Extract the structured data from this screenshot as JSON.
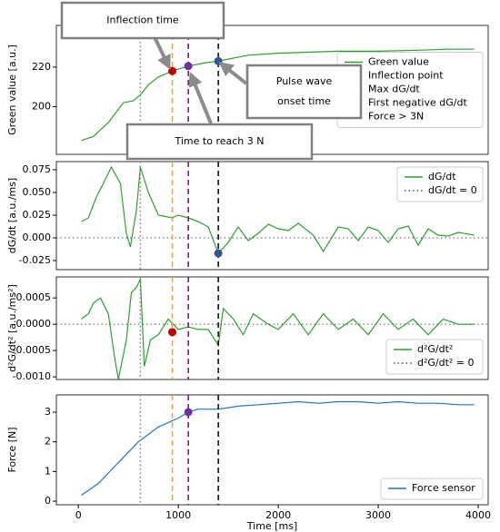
{
  "chart_data": [
    {
      "type": "line",
      "ylabel": "Green value [a.u.]",
      "xlim": [
        -220,
        4100
      ],
      "ylim": [
        176,
        241
      ],
      "yticks": [
        200,
        220
      ],
      "legend": "center right",
      "series": [
        {
          "name": "Green value",
          "color": "#2ca02c",
          "x": [
            30,
            150,
            300,
            450,
            550,
            620,
            700,
            800,
            940,
            1100,
            1250,
            1400,
            1500,
            1700,
            2000,
            2300,
            2600,
            3000,
            3400,
            3700,
            3960
          ],
          "values": [
            183,
            185,
            192,
            202,
            203,
            206,
            211,
            215,
            218,
            220.5,
            222,
            223,
            224,
            226,
            227,
            227.5,
            228,
            228,
            228.5,
            229,
            229
          ]
        }
      ],
      "vlines": [
        {
          "name": "Inflection point",
          "x": 940,
          "color": "#ffa500",
          "style": "dashed"
        },
        {
          "name": "Max dG/dt",
          "x": 620,
          "color": "#808080",
          "style": "dotted"
        },
        {
          "name": "First negative dG/dt",
          "x": 1400,
          "color": "#000000",
          "style": "dashed"
        },
        {
          "name": "Force > 3N",
          "x": 1100,
          "color": "#800080",
          "style": "dashed"
        }
      ],
      "markers": [
        {
          "x": 940,
          "y": 218,
          "color": "#c00000"
        },
        {
          "x": 1100,
          "y": 220.5,
          "color": "#7030a0"
        },
        {
          "x": 1400,
          "y": 223,
          "color": "#2f5597"
        }
      ],
      "annotations": [
        {
          "lines": [
            "Inflection time"
          ],
          "color": "#c00000"
        },
        {
          "lines": [
            "Time to reach 3 N"
          ],
          "color": "#7030a0"
        },
        {
          "lines": [
            "Pulse wave",
            "onset time"
          ],
          "color": "#2f5597"
        }
      ]
    },
    {
      "type": "line",
      "ylabel": "dG/dt [a.u./ms]",
      "xlim": [
        -220,
        4100
      ],
      "ylim": [
        -0.035,
        0.084
      ],
      "legend": "upper right",
      "yticks": [
        -0.025,
        {
          "value": 0,
          "label": "0.000"
        },
        0.025,
        {
          "value": 0.05,
          "label": "0.050"
        },
        0.075
      ],
      "series": [
        {
          "name": "dG/dt",
          "color": "#2ca02c",
          "x": [
            30,
            100,
            180,
            250,
            330,
            420,
            480,
            520,
            580,
            620,
            700,
            800,
            940,
            1000,
            1100,
            1200,
            1300,
            1400,
            1500,
            1600,
            1700,
            1800,
            1900,
            2000,
            2100,
            2200,
            2350,
            2450,
            2600,
            2700,
            2800,
            2900,
            3000,
            3100,
            3200,
            3300,
            3400,
            3500,
            3600,
            3700,
            3800,
            3960
          ],
          "values": [
            0.018,
            0.022,
            0.045,
            0.06,
            0.078,
            0.06,
            0.005,
            -0.01,
            0.03,
            0.078,
            0.05,
            0.025,
            0.022,
            0.025,
            0.022,
            0.018,
            0.012,
            -0.017,
            -0.005,
            0.012,
            -0.003,
            0.005,
            0.015,
            0.01,
            0.008,
            0.016,
            0.003,
            -0.015,
            0.012,
            0.01,
            -0.003,
            0.012,
            0.008,
            -0.005,
            0.01,
            0.013,
            -0.008,
            0.01,
            0.003,
            0.002,
            0.006,
            0.003
          ]
        }
      ],
      "hline": {
        "name": "dG/dt = 0",
        "y": 0,
        "color": "#555555",
        "style": "dotted"
      },
      "vlines": [
        {
          "x": 620,
          "color": "#808080",
          "style": "dotted"
        },
        {
          "x": 940,
          "color": "#ffa500",
          "style": "dashed"
        },
        {
          "x": 1100,
          "color": "#800080",
          "style": "dashed"
        },
        {
          "x": 1400,
          "color": "#000000",
          "style": "dashed"
        }
      ],
      "markers": [
        {
          "x": 1400,
          "y": -0.017,
          "color": "#2f5597"
        }
      ]
    },
    {
      "type": "line",
      "ylabel": "d²G/dt² [a.u./ms²]",
      "xlim": [
        -220,
        4100
      ],
      "ylim": [
        -0.00105,
        0.0009
      ],
      "legend": "lower right",
      "yticks": [
        {
          "value": -0.001,
          "label": "-0.0010"
        },
        -0.0005,
        {
          "value": 0,
          "label": "0.0000"
        },
        0.0005
      ],
      "series": [
        {
          "name": "d²G/dt²",
          "color": "#2ca02c",
          "x": [
            30,
            100,
            150,
            220,
            300,
            360,
            400,
            480,
            530,
            580,
            620,
            660,
            720,
            800,
            900,
            1000,
            1100,
            1200,
            1300,
            1400,
            1450,
            1550,
            1650,
            1750,
            1900,
            2000,
            2150,
            2300,
            2450,
            2600,
            2750,
            2900,
            3050,
            3200,
            3350,
            3500,
            3650,
            3800,
            3960
          ],
          "values": [
            0.0001,
            0.0002,
            0.0004,
            0.0005,
            0.0002,
            -0.0006,
            -0.00105,
            -0.0003,
            0.0006,
            0.0007,
            0.00085,
            -0.0008,
            -0.0003,
            -0.0002,
            0.0001,
            -0.0001,
            -5e-05,
            -0.0001,
            -0.0001,
            -0.0004,
            0.0003,
            0.0001,
            -0.0002,
            0.0002,
            0,
            -0.0001,
            0.0002,
            -0.0002,
            0.0002,
            -0.0001,
            0.0001,
            -0.0002,
            0.0002,
            -0.0001,
            0.0001,
            -0.0002,
            0.0001,
            0,
            0
          ]
        }
      ],
      "hline": {
        "name": "d²G/dt² = 0",
        "y": 0,
        "color": "#555555",
        "style": "dotted"
      },
      "vlines": [
        {
          "x": 620,
          "color": "#808080",
          "style": "dotted"
        },
        {
          "x": 940,
          "color": "#ffa500",
          "style": "dashed"
        },
        {
          "x": 1100,
          "color": "#800080",
          "style": "dashed"
        },
        {
          "x": 1400,
          "color": "#000000",
          "style": "dashed"
        }
      ],
      "markers": [
        {
          "x": 940,
          "y": -0.00015,
          "color": "#c00000"
        }
      ]
    },
    {
      "type": "line",
      "ylabel": "Force [N]",
      "xlabel": "Time [ms]",
      "xlim": [
        -220,
        4100
      ],
      "ylim": [
        -0.12,
        3.58
      ],
      "legend": "lower right",
      "yticks": [
        0,
        1,
        2,
        3
      ],
      "xticks": [
        0,
        1000,
        2000,
        3000,
        4000
      ],
      "series": [
        {
          "name": "Force sensor",
          "color": "#1f77b4",
          "x": [
            30,
            200,
            400,
            600,
            800,
            1000,
            1100,
            1200,
            1400,
            1600,
            1800,
            2000,
            2200,
            2400,
            2600,
            2800,
            3000,
            3200,
            3400,
            3600,
            3800,
            3960
          ],
          "values": [
            0.2,
            0.6,
            1.3,
            2.0,
            2.5,
            2.8,
            3.0,
            3.1,
            3.1,
            3.2,
            3.25,
            3.3,
            3.35,
            3.3,
            3.35,
            3.35,
            3.3,
            3.35,
            3.3,
            3.3,
            3.25,
            3.25
          ]
        }
      ],
      "vlines": [
        {
          "x": 620,
          "color": "#808080",
          "style": "dotted"
        },
        {
          "x": 940,
          "color": "#ffa500",
          "style": "dashed"
        },
        {
          "x": 1100,
          "color": "#800080",
          "style": "dashed"
        },
        {
          "x": 1400,
          "color": "#000000",
          "style": "dashed"
        }
      ],
      "markers": [
        {
          "x": 1100,
          "y": 3.0,
          "color": "#7030a0"
        }
      ]
    }
  ]
}
